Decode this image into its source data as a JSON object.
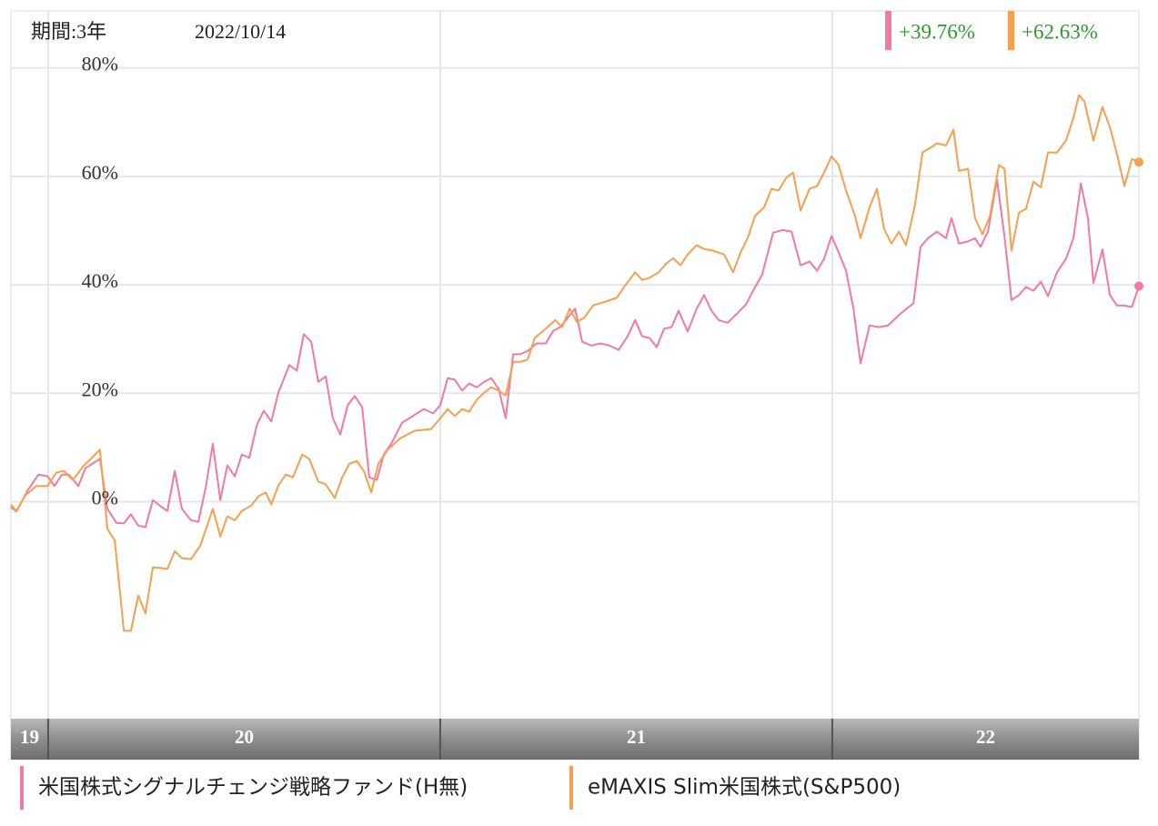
{
  "chart_data": {
    "type": "line",
    "period_label": "期間:3年",
    "date_label": "2022/10/14",
    "xlim": [
      2019.905,
      2022.782
    ],
    "xticks": [
      {
        "value": 2019,
        "label": "19"
      },
      {
        "value": 2020,
        "label": "20"
      },
      {
        "value": 2021,
        "label": "21"
      },
      {
        "value": 2022,
        "label": "22"
      }
    ],
    "ylim": [
      -40,
      90
    ],
    "yticks": [
      {
        "value": 0,
        "label": "0%"
      },
      {
        "value": 20,
        "label": "20%"
      },
      {
        "value": 40,
        "label": "40%"
      },
      {
        "value": 60,
        "label": "60%"
      },
      {
        "value": 80,
        "label": "80%"
      }
    ],
    "grid": true,
    "series": [
      {
        "name": "米国株式シグナルチェンジ戦略ファンド(H無)",
        "color": "#f07aa0",
        "end_label": "+39.76%",
        "x": [
          2019.905,
          2019.919,
          2019.947,
          2019.975,
          2019.998,
          2020.016,
          2020.035,
          2020.053,
          2020.077,
          2020.095,
          2020.132,
          2020.151,
          2020.174,
          2020.193,
          2020.211,
          2020.23,
          2020.248,
          2020.267,
          2020.29,
          2020.304,
          2020.323,
          2020.341,
          2020.364,
          2020.383,
          2020.402,
          2020.42,
          2020.439,
          2020.457,
          2020.476,
          2020.494,
          2020.513,
          2020.532,
          2020.55,
          2020.569,
          2020.587,
          2020.615,
          2020.634,
          2020.652,
          2020.671,
          2020.689,
          2020.708,
          2020.726,
          2020.745,
          2020.764,
          2020.782,
          2020.801,
          2020.819,
          2020.838,
          2020.856,
          2020.875,
          2020.903,
          2020.921,
          2020.958,
          2020.982,
          2021.0,
          2021.019,
          2021.037,
          2021.056,
          2021.074,
          2021.093,
          2021.112,
          2021.13,
          2021.149,
          2021.167,
          2021.186,
          2021.204,
          2021.223,
          2021.246,
          2021.269,
          2021.288,
          2021.306,
          2021.325,
          2021.344,
          2021.362,
          2021.385,
          2021.409,
          2021.432,
          2021.455,
          2021.478,
          2021.497,
          2021.515,
          2021.534,
          2021.552,
          2021.571,
          2021.59,
          2021.608,
          2021.631,
          2021.654,
          2021.673,
          2021.692,
          2021.71,
          2021.733,
          2021.757,
          2021.78,
          2021.798,
          2021.821,
          2021.849,
          2021.873,
          2021.896,
          2021.919,
          2021.942,
          2021.961,
          2021.979,
          2021.998,
          2022.016,
          2022.035,
          2022.054,
          2022.072,
          2022.095,
          2022.119,
          2022.142,
          2022.174,
          2022.207,
          2022.225,
          2022.244,
          2022.267,
          2022.29,
          2022.304,
          2022.323,
          2022.346,
          2022.364,
          2022.378,
          2022.397,
          2022.42,
          2022.439,
          2022.457,
          2022.476,
          2022.494,
          2022.513,
          2022.532,
          2022.55,
          2022.573,
          2022.596,
          2022.615,
          2022.634,
          2022.652,
          2022.666,
          2022.689,
          2022.708,
          2022.726,
          2022.745,
          2022.764,
          2022.782
        ],
        "values": [
          -1.0,
          -1.8,
          2.0,
          5.0,
          4.7,
          2.9,
          5.0,
          5.0,
          2.9,
          6.2,
          7.9,
          -1.3,
          -3.9,
          -4.0,
          -2.3,
          -4.4,
          -4.7,
          0.3,
          -1.0,
          -1.7,
          5.7,
          -1.3,
          -3.4,
          -3.7,
          2.7,
          10.7,
          0.3,
          6.7,
          4.7,
          8.7,
          8.1,
          14.1,
          16.8,
          14.8,
          20.1,
          25.2,
          24.2,
          30.9,
          29.5,
          22.1,
          23.1,
          15.4,
          12.4,
          17.8,
          19.5,
          17.4,
          4.5,
          4.0,
          8.7,
          10.7,
          14.6,
          15.4,
          17.1,
          16.3,
          17.8,
          22.8,
          22.5,
          20.5,
          21.8,
          21.1,
          22.1,
          22.8,
          20.8,
          15.4,
          27.2,
          27.2,
          27.8,
          29.2,
          29.2,
          31.5,
          32.2,
          33.9,
          35.6,
          29.5,
          28.8,
          29.2,
          28.8,
          28.0,
          30.5,
          33.5,
          30.5,
          30.2,
          28.5,
          31.9,
          32.2,
          35.2,
          31.4,
          35.6,
          38.1,
          35.2,
          33.5,
          33.0,
          34.7,
          36.4,
          38.9,
          41.9,
          49.6,
          50.1,
          49.8,
          43.6,
          44.3,
          42.6,
          44.8,
          49.0,
          46.0,
          42.6,
          35.6,
          25.5,
          32.5,
          32.2,
          32.5,
          34.7,
          36.6,
          47.0,
          48.6,
          49.8,
          48.6,
          52.3,
          47.6,
          48.0,
          48.6,
          47.0,
          49.8,
          59.4,
          49.0,
          37.2,
          38.1,
          39.6,
          38.9,
          40.6,
          37.9,
          42.3,
          44.8,
          48.6,
          58.7,
          52.3,
          40.3,
          46.5,
          38.1,
          36.2,
          36.2,
          35.9,
          39.76
        ]
      },
      {
        "name": "eMAXIS Slim米国株式(S&P500)",
        "color": "#f5a050",
        "end_label": "+62.63%",
        "x": [
          2019.905,
          2019.919,
          2019.942,
          2019.97,
          2019.998,
          2020.021,
          2020.04,
          2020.063,
          2020.091,
          2020.109,
          2020.132,
          2020.151,
          2020.17,
          2020.193,
          2020.211,
          2020.23,
          2020.248,
          2020.267,
          2020.286,
          2020.304,
          2020.323,
          2020.341,
          2020.364,
          2020.388,
          2020.42,
          2020.439,
          2020.457,
          2020.476,
          2020.494,
          2020.518,
          2020.536,
          2020.555,
          2020.569,
          2020.587,
          2020.606,
          2020.624,
          2020.648,
          2020.666,
          2020.689,
          2020.708,
          2020.731,
          2020.75,
          2020.768,
          2020.787,
          2020.805,
          2020.824,
          2020.842,
          2020.866,
          2020.898,
          2020.935,
          2020.977,
          2021.0,
          2021.019,
          2021.037,
          2021.056,
          2021.074,
          2021.093,
          2021.112,
          2021.13,
          2021.149,
          2021.167,
          2021.186,
          2021.204,
          2021.223,
          2021.241,
          2021.269,
          2021.293,
          2021.311,
          2021.33,
          2021.348,
          2021.367,
          2021.39,
          2021.422,
          2021.45,
          2021.469,
          2021.497,
          2021.515,
          2021.534,
          2021.557,
          2021.576,
          2021.594,
          2021.613,
          2021.631,
          2021.654,
          2021.673,
          2021.696,
          2021.724,
          2021.747,
          2021.766,
          2021.784,
          2021.803,
          2021.826,
          2021.845,
          2021.863,
          2021.882,
          2021.9,
          2021.919,
          2021.942,
          2021.961,
          2021.979,
          2021.998,
          2022.016,
          2022.035,
          2022.058,
          2022.072,
          2022.095,
          2022.114,
          2022.132,
          2022.151,
          2022.17,
          2022.188,
          2022.211,
          2022.23,
          2022.253,
          2022.267,
          2022.29,
          2022.309,
          2022.323,
          2022.346,
          2022.364,
          2022.383,
          2022.402,
          2022.425,
          2022.439,
          2022.457,
          2022.476,
          2022.494,
          2022.513,
          2022.532,
          2022.55,
          2022.573,
          2022.596,
          2022.615,
          2022.629,
          2022.643,
          2022.666,
          2022.689,
          2022.708,
          2022.726,
          2022.745,
          2022.764,
          2022.782
        ],
        "values": [
          -0.5,
          -1.7,
          1.2,
          2.9,
          2.9,
          5.4,
          5.7,
          4.0,
          6.7,
          7.9,
          9.6,
          -5.0,
          -7.2,
          -23.8,
          -23.8,
          -17.3,
          -20.6,
          -12.1,
          -12.2,
          -12.4,
          -9.1,
          -10.4,
          -10.6,
          -8.1,
          -1.3,
          -6.4,
          -2.7,
          -3.4,
          -1.7,
          -0.7,
          1.0,
          1.7,
          -0.5,
          3.0,
          5.0,
          4.5,
          8.7,
          7.9,
          3.7,
          3.2,
          0.7,
          4.5,
          7.0,
          7.5,
          5.7,
          1.7,
          7.0,
          9.6,
          11.7,
          13.1,
          13.4,
          15.4,
          17.1,
          15.8,
          17.1,
          16.6,
          18.8,
          20.1,
          21.1,
          20.5,
          19.6,
          25.8,
          25.8,
          26.2,
          30.2,
          31.9,
          33.5,
          32.2,
          35.6,
          33.2,
          33.9,
          36.2,
          36.9,
          37.6,
          39.6,
          42.3,
          40.9,
          41.3,
          42.3,
          43.9,
          44.9,
          43.6,
          45.6,
          47.3,
          46.6,
          46.3,
          45.6,
          42.3,
          46.0,
          48.6,
          52.7,
          54.3,
          57.7,
          57.4,
          59.7,
          60.7,
          53.7,
          57.7,
          58.2,
          60.7,
          63.7,
          62.1,
          57.4,
          52.7,
          48.6,
          54.3,
          57.7,
          50.3,
          47.6,
          49.8,
          47.3,
          54.8,
          64.4,
          65.4,
          66.1,
          65.7,
          68.6,
          61.0,
          61.4,
          52.3,
          49.3,
          52.7,
          62.1,
          61.4,
          46.3,
          53.3,
          54.0,
          59.0,
          58.0,
          64.4,
          64.4,
          66.6,
          70.8,
          75.0,
          73.8,
          66.6,
          72.8,
          69.1,
          64.1,
          58.2,
          63.2,
          62.63
        ]
      }
    ]
  }
}
